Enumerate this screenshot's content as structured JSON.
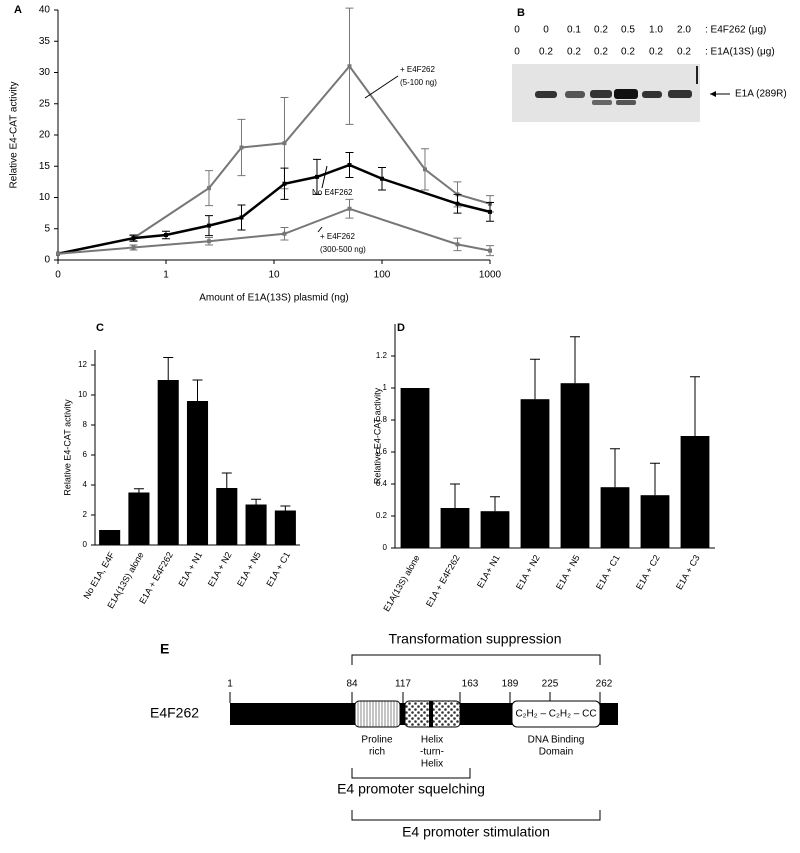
{
  "chart_data": [
    {
      "type": "line",
      "panel_label": "A",
      "x_label": "Amount of E1A(13S) plasmid  (ng)",
      "y_label": "Relative E4-CAT activity",
      "xscale": "log",
      "xlim": [
        0,
        1000
      ],
      "xticks": [
        0,
        1,
        10,
        100,
        1000
      ],
      "ylim": [
        0,
        40
      ],
      "yticks": [
        0,
        5,
        10,
        15,
        20,
        25,
        30,
        35,
        40
      ],
      "series": [
        {
          "label": [
            "+ E4F262",
            "(5-100 ng)"
          ],
          "color": "#777777",
          "x": [
            0,
            0.5,
            2.5,
            5,
            12.5,
            50,
            250,
            500,
            1000
          ],
          "values": [
            1,
            3.5,
            11.5,
            18,
            18.7,
            31,
            14.5,
            10.5,
            9
          ],
          "errors": [
            0,
            0.4,
            2.8,
            4.5,
            7.3,
            9.3,
            3.3,
            2,
            1.3
          ]
        },
        {
          "label": [
            "No E4F262"
          ],
          "color": "#000000",
          "x": [
            0,
            0.5,
            1,
            2.5,
            5,
            12.5,
            25,
            50,
            100,
            500,
            1000
          ],
          "values": [
            1,
            3.5,
            4,
            5.5,
            6.8,
            12.2,
            13.3,
            15.2,
            13,
            9,
            7.7
          ],
          "errors": [
            0,
            0.5,
            0.6,
            1.6,
            2,
            2.5,
            2.8,
            2,
            1.8,
            1.5,
            1.5
          ]
        },
        {
          "label": [
            "+ E4F262",
            "(300-500 ng)"
          ],
          "color": "#777777",
          "x": [
            0,
            0.5,
            2.5,
            12.5,
            50,
            500,
            1000
          ],
          "values": [
            1,
            2,
            3,
            4.2,
            8.2,
            2.5,
            1.5
          ],
          "errors": [
            0,
            0.4,
            0.6,
            1,
            1.5,
            1,
            0.8
          ]
        }
      ]
    },
    {
      "type": "bar",
      "panel_label": "C",
      "y_label": "Relative E4-CAT activity",
      "categories": [
        "No E1A, E4F",
        "E1A(13S) alone",
        "E1A + E4F262",
        "E1A + N1",
        "E1A + N2",
        "E1A + N5",
        "E1A + C1"
      ],
      "values": [
        1,
        3.5,
        11,
        9.6,
        3.8,
        2.7,
        2.3
      ],
      "errors": [
        null,
        0.25,
        1.5,
        1.4,
        1,
        0.35,
        0.3
      ],
      "color": "#000000",
      "ylim": [
        0,
        13
      ],
      "yticks": [
        0,
        2,
        4,
        6,
        8,
        10,
        12
      ]
    },
    {
      "type": "bar",
      "panel_label": "D",
      "y_label": "Relative E4-CAT activity",
      "categories": [
        "E1A(13S) alone",
        "E1A + E4F262",
        "E1A+ N1",
        "E1A + N2",
        "E1A + N5",
        "E1A + C1",
        "E1A + C2",
        "E1A + C3"
      ],
      "values": [
        1,
        0.25,
        0.23,
        0.93,
        1.03,
        0.38,
        0.33,
        0.7
      ],
      "errors": [
        null,
        0.15,
        0.09,
        0.25,
        0.29,
        0.24,
        0.2,
        0.37
      ],
      "color": "#000000",
      "ylim": [
        0,
        1.4
      ],
      "yticks": [
        0,
        0.2,
        0.4,
        0.6,
        0.8,
        1,
        1.2
      ]
    }
  ],
  "panel_b": {
    "panel_label": "B",
    "e4f262_amounts": [
      "0",
      "0",
      "0.1",
      "0.2",
      "0.5",
      "1.0",
      "2.0"
    ],
    "e4f262_label": ": E4F262  (μg)",
    "e1a_amounts": [
      "0",
      "0.2",
      "0.2",
      "0.2",
      "0.2",
      "0.2",
      "0.2"
    ],
    "e1a_label": ": E1A(13S)  (μg)",
    "band_label": "E1A (289R)"
  },
  "panel_e": {
    "panel_label": "E",
    "protein": "E4F262",
    "residues": [
      "1",
      "84",
      "117",
      "163",
      "189",
      "225",
      "262"
    ],
    "top_region": "Transformation suppression",
    "proline": [
      "Proline",
      "rich"
    ],
    "helix": [
      "Helix",
      "-turn-",
      "Helix"
    ],
    "formula": "C₂H₂ – C₂H₂ – CC",
    "dna": [
      "DNA Binding",
      "Domain"
    ],
    "squelch": "E4 promoter squelching",
    "stim": "E4 promoter stimulation"
  }
}
